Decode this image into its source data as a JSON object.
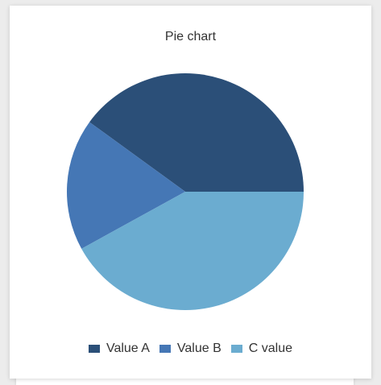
{
  "chart_data": {
    "type": "pie",
    "title": "Pie chart",
    "categories": [
      "Value A",
      "Value B",
      "C value"
    ],
    "values": [
      40,
      18,
      42
    ],
    "colors": [
      "#2b4f78",
      "#4577b5",
      "#6bacd0"
    ],
    "legend_position": "bottom"
  }
}
